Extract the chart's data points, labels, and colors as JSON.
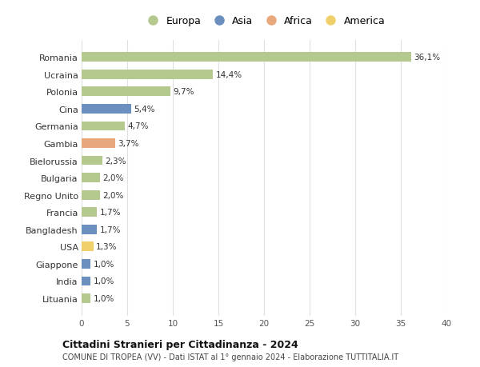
{
  "categories": [
    "Romania",
    "Ucraina",
    "Polonia",
    "Cina",
    "Germania",
    "Gambia",
    "Bielorussia",
    "Bulgaria",
    "Regno Unito",
    "Francia",
    "Bangladesh",
    "USA",
    "Giappone",
    "India",
    "Lituania"
  ],
  "values": [
    36.1,
    14.4,
    9.7,
    5.4,
    4.7,
    3.7,
    2.3,
    2.0,
    2.0,
    1.7,
    1.7,
    1.3,
    1.0,
    1.0,
    1.0
  ],
  "labels": [
    "36,1%",
    "14,4%",
    "9,7%",
    "5,4%",
    "4,7%",
    "3,7%",
    "2,3%",
    "2,0%",
    "2,0%",
    "1,7%",
    "1,7%",
    "1,3%",
    "1,0%",
    "1,0%",
    "1,0%"
  ],
  "continents": [
    "Europa",
    "Europa",
    "Europa",
    "Asia",
    "Europa",
    "Africa",
    "Europa",
    "Europa",
    "Europa",
    "Europa",
    "Asia",
    "America",
    "Asia",
    "Asia",
    "Europa"
  ],
  "colors": {
    "Europa": "#b5c98e",
    "Asia": "#6b8fbe",
    "Africa": "#e8a87c",
    "America": "#f0d06a"
  },
  "legend_labels": [
    "Europa",
    "Asia",
    "Africa",
    "America"
  ],
  "title": "Cittadini Stranieri per Cittadinanza - 2024",
  "subtitle": "COMUNE DI TROPEA (VV) - Dati ISTAT al 1° gennaio 2024 - Elaborazione TUTTITALIA.IT",
  "xlim": [
    0,
    40
  ],
  "xticks": [
    0,
    5,
    10,
    15,
    20,
    25,
    30,
    35,
    40
  ],
  "background_color": "#ffffff",
  "grid_color": "#e0e0e0"
}
